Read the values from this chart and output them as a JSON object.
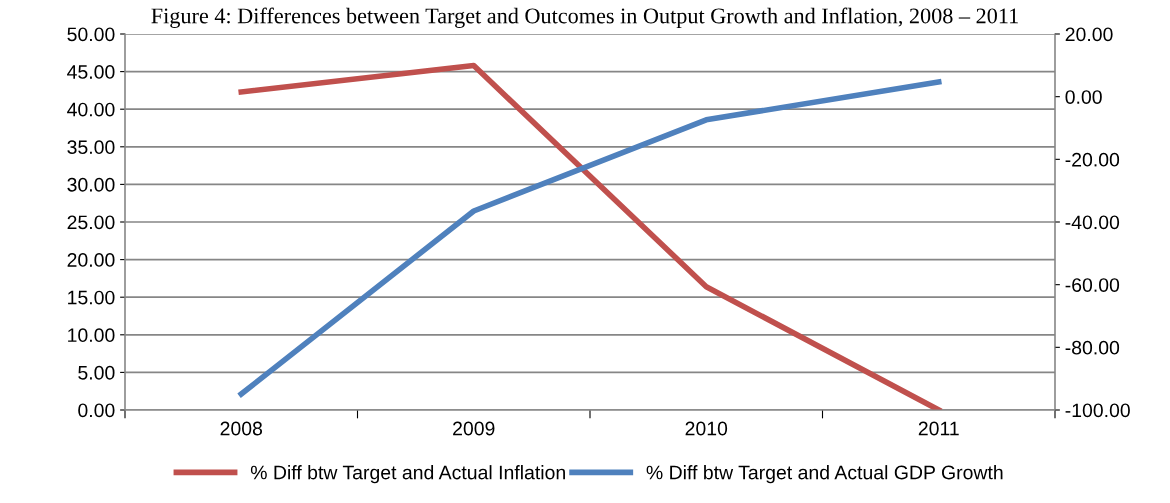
{
  "chart_data": {
    "type": "line",
    "title": "Figure 4: Differences between Target and Outcomes in Output Growth and Inflation, 2008 – 2011",
    "categories": [
      "2008",
      "2009",
      "2010",
      "2011"
    ],
    "series": [
      {
        "name": "% Diff btw Target and Actual Inflation",
        "color": "#c0504d",
        "values": [
          42.3,
          45.8,
          16.4,
          0.0
        ]
      },
      {
        "name": "% Diff btw Target and Actual GDP Growth",
        "color": "#4f81bd",
        "axis": "y2",
        "values": [
          -94.9,
          -36.5,
          -7.4,
          4.7
        ]
      }
    ],
    "ylim": [
      0,
      50
    ],
    "yticks": [
      {
        "value": 0,
        "label": "0.00"
      },
      {
        "value": 5,
        "label": "5.00"
      },
      {
        "value": 10,
        "label": "10.00"
      },
      {
        "value": 15,
        "label": "15.00"
      },
      {
        "value": 20,
        "label": "20.00"
      },
      {
        "value": 25,
        "label": "25.00"
      },
      {
        "value": 30,
        "label": "30.00"
      },
      {
        "value": 35,
        "label": "35.00"
      },
      {
        "value": 40,
        "label": "40.00"
      },
      {
        "value": 45,
        "label": "45.00"
      },
      {
        "value": 50,
        "label": "50.00"
      }
    ],
    "y2lim": [
      -100,
      20
    ],
    "y2ticks": [
      {
        "value": -100,
        "label": "-100.00"
      },
      {
        "value": -80,
        "label": "-80.00"
      },
      {
        "value": -60,
        "label": "-60.00"
      },
      {
        "value": -40,
        "label": "-40.00"
      },
      {
        "value": -20,
        "label": "-20.00"
      },
      {
        "value": 0,
        "label": "0.00"
      },
      {
        "value": 20,
        "label": "20.00"
      }
    ],
    "grid": "y",
    "legend": "bottom",
    "marker": "none",
    "line_style": "solid"
  }
}
